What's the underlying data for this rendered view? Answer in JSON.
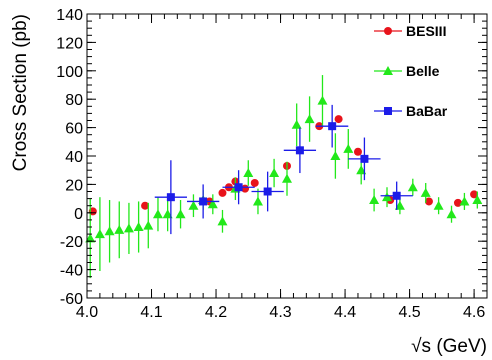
{
  "chart_data": {
    "type": "scatter",
    "title": "",
    "xlabel": "√s (GeV)",
    "ylabel": "Cross Section (pb)",
    "xlim": [
      4.0,
      4.62
    ],
    "ylim": [
      -60,
      140
    ],
    "xticks": [
      4.0,
      4.1,
      4.2,
      4.3,
      4.4,
      4.5,
      4.6
    ],
    "xtick_labels": [
      "4.0",
      "4.1",
      "4.2",
      "4.3",
      "4.4",
      "4.5",
      "4.6"
    ],
    "yticks": [
      -60,
      -40,
      -20,
      0,
      20,
      40,
      60,
      80,
      100,
      120,
      140
    ],
    "ytick_labels": [
      "-60",
      "-40",
      "-20",
      "0",
      "20",
      "40",
      "60",
      "80",
      "100",
      "120",
      "140"
    ],
    "grid": false,
    "legend_position": "top-right",
    "series": [
      {
        "name": "BESIII",
        "color": "#e8131b",
        "marker": "circle",
        "points": [
          {
            "x": 4.009,
            "y": 1,
            "yerr": 0
          },
          {
            "x": 4.09,
            "y": 5,
            "yerr": 0
          },
          {
            "x": 4.19,
            "y": 8,
            "yerr": 0
          },
          {
            "x": 4.21,
            "y": 14,
            "yerr": 0
          },
          {
            "x": 4.22,
            "y": 18,
            "yerr": 0
          },
          {
            "x": 4.23,
            "y": 22,
            "yerr": 0
          },
          {
            "x": 4.245,
            "y": 17,
            "yerr": 0
          },
          {
            "x": 4.26,
            "y": 21,
            "yerr": 0
          },
          {
            "x": 4.31,
            "y": 33,
            "yerr": 0
          },
          {
            "x": 4.36,
            "y": 61,
            "yerr": 0
          },
          {
            "x": 4.39,
            "y": 66,
            "yerr": 0
          },
          {
            "x": 4.42,
            "y": 43,
            "yerr": 0
          },
          {
            "x": 4.47,
            "y": 9,
            "yerr": 0
          },
          {
            "x": 4.53,
            "y": 8,
            "yerr": 0
          },
          {
            "x": 4.575,
            "y": 7,
            "yerr": 0
          },
          {
            "x": 4.6,
            "y": 13,
            "yerr": 0
          }
        ]
      },
      {
        "name": "Belle",
        "color": "#22e81a",
        "marker": "triangle",
        "points": [
          {
            "x": 4.005,
            "y": -18,
            "yerr": 28
          },
          {
            "x": 4.02,
            "y": -15,
            "yerr": 26
          },
          {
            "x": 4.035,
            "y": -13,
            "yerr": 22
          },
          {
            "x": 4.05,
            "y": -12,
            "yerr": 20
          },
          {
            "x": 4.065,
            "y": -11,
            "yerr": 18
          },
          {
            "x": 4.08,
            "y": -10,
            "yerr": 18
          },
          {
            "x": 4.095,
            "y": -9,
            "yerr": 16
          },
          {
            "x": 4.11,
            "y": -1,
            "yerr": 12
          },
          {
            "x": 4.125,
            "y": -1,
            "yerr": 12
          },
          {
            "x": 4.145,
            "y": -1,
            "yerr": 10
          },
          {
            "x": 4.165,
            "y": 5,
            "yerr": 8
          },
          {
            "x": 4.18,
            "y": 9,
            "yerr": 7
          },
          {
            "x": 4.195,
            "y": 6,
            "yerr": 7
          },
          {
            "x": 4.21,
            "y": -6,
            "yerr": 8
          },
          {
            "x": 4.23,
            "y": 17,
            "yerr": 8
          },
          {
            "x": 4.25,
            "y": 28,
            "yerr": 9
          },
          {
            "x": 4.265,
            "y": 8,
            "yerr": 9
          },
          {
            "x": 4.29,
            "y": 28,
            "yerr": 10
          },
          {
            "x": 4.31,
            "y": 24,
            "yerr": 12
          },
          {
            "x": 4.325,
            "y": 62,
            "yerr": 15
          },
          {
            "x": 4.345,
            "y": 66,
            "yerr": 16
          },
          {
            "x": 4.365,
            "y": 79,
            "yerr": 18
          },
          {
            "x": 4.385,
            "y": 40,
            "yerr": 16
          },
          {
            "x": 4.405,
            "y": 45,
            "yerr": 14
          },
          {
            "x": 4.425,
            "y": 30,
            "yerr": 10
          },
          {
            "x": 4.445,
            "y": 9,
            "yerr": 8
          },
          {
            "x": 4.465,
            "y": 11,
            "yerr": 7
          },
          {
            "x": 4.485,
            "y": 5,
            "yerr": 6
          },
          {
            "x": 4.505,
            "y": 18,
            "yerr": 6
          },
          {
            "x": 4.525,
            "y": 14,
            "yerr": 7
          },
          {
            "x": 4.545,
            "y": 5,
            "yerr": 6
          },
          {
            "x": 4.565,
            "y": -1,
            "yerr": 6
          },
          {
            "x": 4.585,
            "y": 8,
            "yerr": 6
          },
          {
            "x": 4.605,
            "y": 9,
            "yerr": 6
          }
        ]
      },
      {
        "name": "BaBar",
        "color": "#1c1ce8",
        "marker": "square",
        "points": [
          {
            "x": 4.13,
            "y": 11,
            "xerr": 0.025,
            "yerr": 26
          },
          {
            "x": 4.18,
            "y": 8,
            "xerr": 0.025,
            "yerr": 12
          },
          {
            "x": 4.235,
            "y": 18,
            "xerr": 0.025,
            "yerr": 12
          },
          {
            "x": 4.28,
            "y": 15,
            "xerr": 0.025,
            "yerr": 14
          },
          {
            "x": 4.33,
            "y": 44,
            "xerr": 0.025,
            "yerr": 16
          },
          {
            "x": 4.38,
            "y": 61,
            "xerr": 0.025,
            "yerr": 15
          },
          {
            "x": 4.43,
            "y": 38,
            "xerr": 0.025,
            "yerr": 15
          },
          {
            "x": 4.48,
            "y": 12,
            "xerr": 0.025,
            "yerr": 10
          }
        ]
      }
    ]
  }
}
